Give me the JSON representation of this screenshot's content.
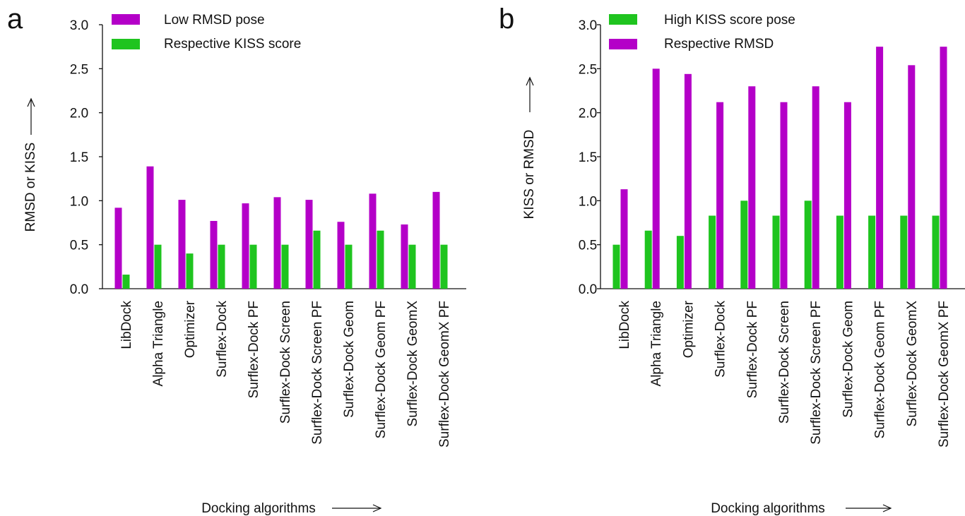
{
  "chart_data": [
    {
      "panel": "a",
      "type": "bar",
      "categories": [
        "LibDock",
        "Alpha Triangle",
        "Optimizer",
        "Surflex-Dock",
        "Surflex-Dock PF",
        "Surflex-Dock Screen",
        "Surflex-Dock Screen PF",
        "Surflex-Dock Geom",
        "Surflex-Dock Geom PF",
        "Surflex-Dock GeomX",
        "Surflex-Dock GeomX PF"
      ],
      "series": [
        {
          "name": "Low RMSD pose",
          "color": "#b400c8",
          "values": [
            0.92,
            1.39,
            1.01,
            0.77,
            0.97,
            1.04,
            1.01,
            0.76,
            1.08,
            0.73,
            1.1
          ]
        },
        {
          "name": "Respective KISS score",
          "color": "#1fc41f",
          "values": [
            0.16,
            0.5,
            0.4,
            0.5,
            0.5,
            0.5,
            0.66,
            0.5,
            0.66,
            0.5,
            0.5
          ]
        }
      ],
      "xlabel": "Docking algorithms",
      "ylabel": "RMSD or KISS",
      "ylim": [
        0,
        3.0
      ],
      "yticks": [
        "0.0",
        "0.5",
        "1.0",
        "1.5",
        "2.0",
        "2.5",
        "3.0"
      ],
      "grid": false,
      "legend_position": "top"
    },
    {
      "panel": "b",
      "type": "bar",
      "categories": [
        "LibDock",
        "Alpha Triangle",
        "Optimizer",
        "Surflex-Dock",
        "Surflex-Dock PF",
        "Surflex-Dock Screen",
        "Surflex-Dock Screen PF",
        "Surflex-Dock Geom",
        "Surflex-Dock Geom PF",
        "Surflex-Dock GeomX",
        "Surflex-Dock GeomX PF"
      ],
      "series": [
        {
          "name": "High KISS score pose",
          "color": "#1fc41f",
          "values": [
            0.5,
            0.66,
            0.6,
            0.83,
            1.0,
            0.83,
            1.0,
            0.83,
            0.83,
            0.83,
            0.83
          ]
        },
        {
          "name": "Respective RMSD",
          "color": "#b400c8",
          "values": [
            1.13,
            2.5,
            2.44,
            2.12,
            2.3,
            2.12,
            2.3,
            2.12,
            2.75,
            2.54,
            2.75
          ]
        }
      ],
      "xlabel": "Docking algorithms",
      "ylabel": "KISS or RMSD",
      "ylim": [
        0,
        3.0
      ],
      "yticks": [
        "0.0",
        "0.5",
        "1.0",
        "1.5",
        "2.0",
        "2.5",
        "3.0"
      ],
      "grid": false,
      "legend_position": "top"
    }
  ]
}
